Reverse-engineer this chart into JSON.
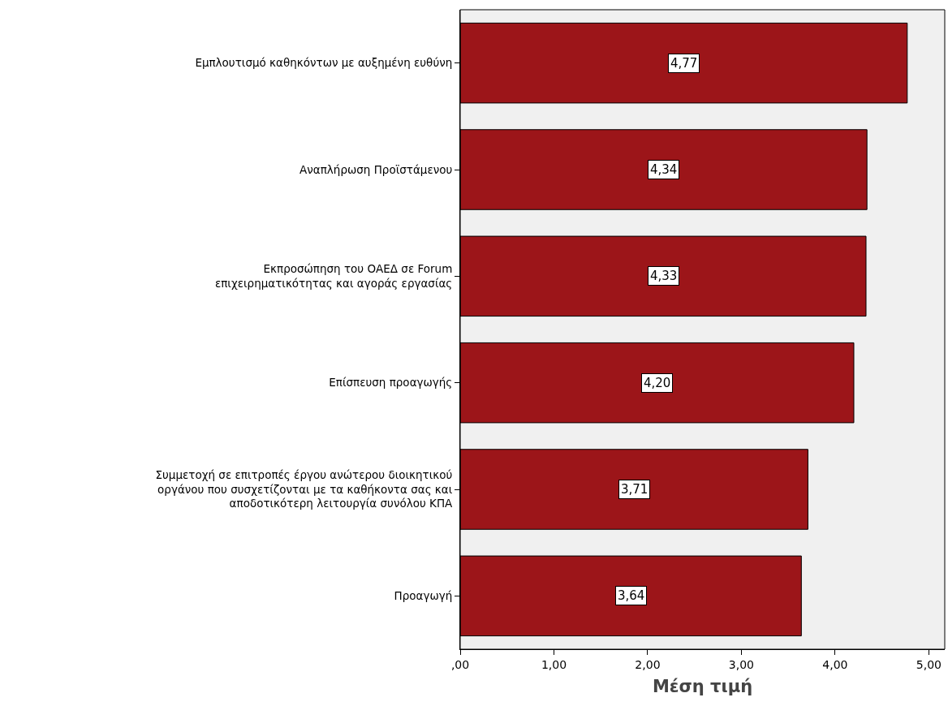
{
  "chart_data": {
    "type": "bar",
    "orientation": "horizontal",
    "categories": [
      "Εμπλουτισμό καθηκόντων με αυξημένη ευθύνη",
      "Αναπλήρωση Προϊστάμενου",
      "Εκπροσώπηση του ΟΑΕΔ σε Forum\nεπιχειρηματικότητας και αγοράς εργασίας",
      "Επίσπευση προαγωγής",
      "Συμμετοχή σε επιτροπές έργου ανώτερου διοικητικού\nοργάνου που συσχετίζονται με τα καθήκοντα σας και\nαποδοτικότερη λειτουργία συνόλου ΚΠΑ",
      "Προαγωγή"
    ],
    "values": [
      4.77,
      4.34,
      4.33,
      4.2,
      3.71,
      3.64
    ],
    "value_labels": [
      "4,77",
      "4,34",
      "4,33",
      "4,20",
      "3,71",
      "3,64"
    ],
    "color": "#9c1519",
    "xlabel": "Μέση τιμή",
    "xlim": [
      0,
      5.17
    ],
    "xticks": [
      {
        "value": 0,
        "label": ",00"
      },
      {
        "value": 1,
        "label": "1,00"
      },
      {
        "value": 2,
        "label": "2,00"
      },
      {
        "value": 3,
        "label": "3,00"
      },
      {
        "value": 4,
        "label": "4,00"
      },
      {
        "value": 5,
        "label": "5,00"
      }
    ],
    "grid": false
  }
}
